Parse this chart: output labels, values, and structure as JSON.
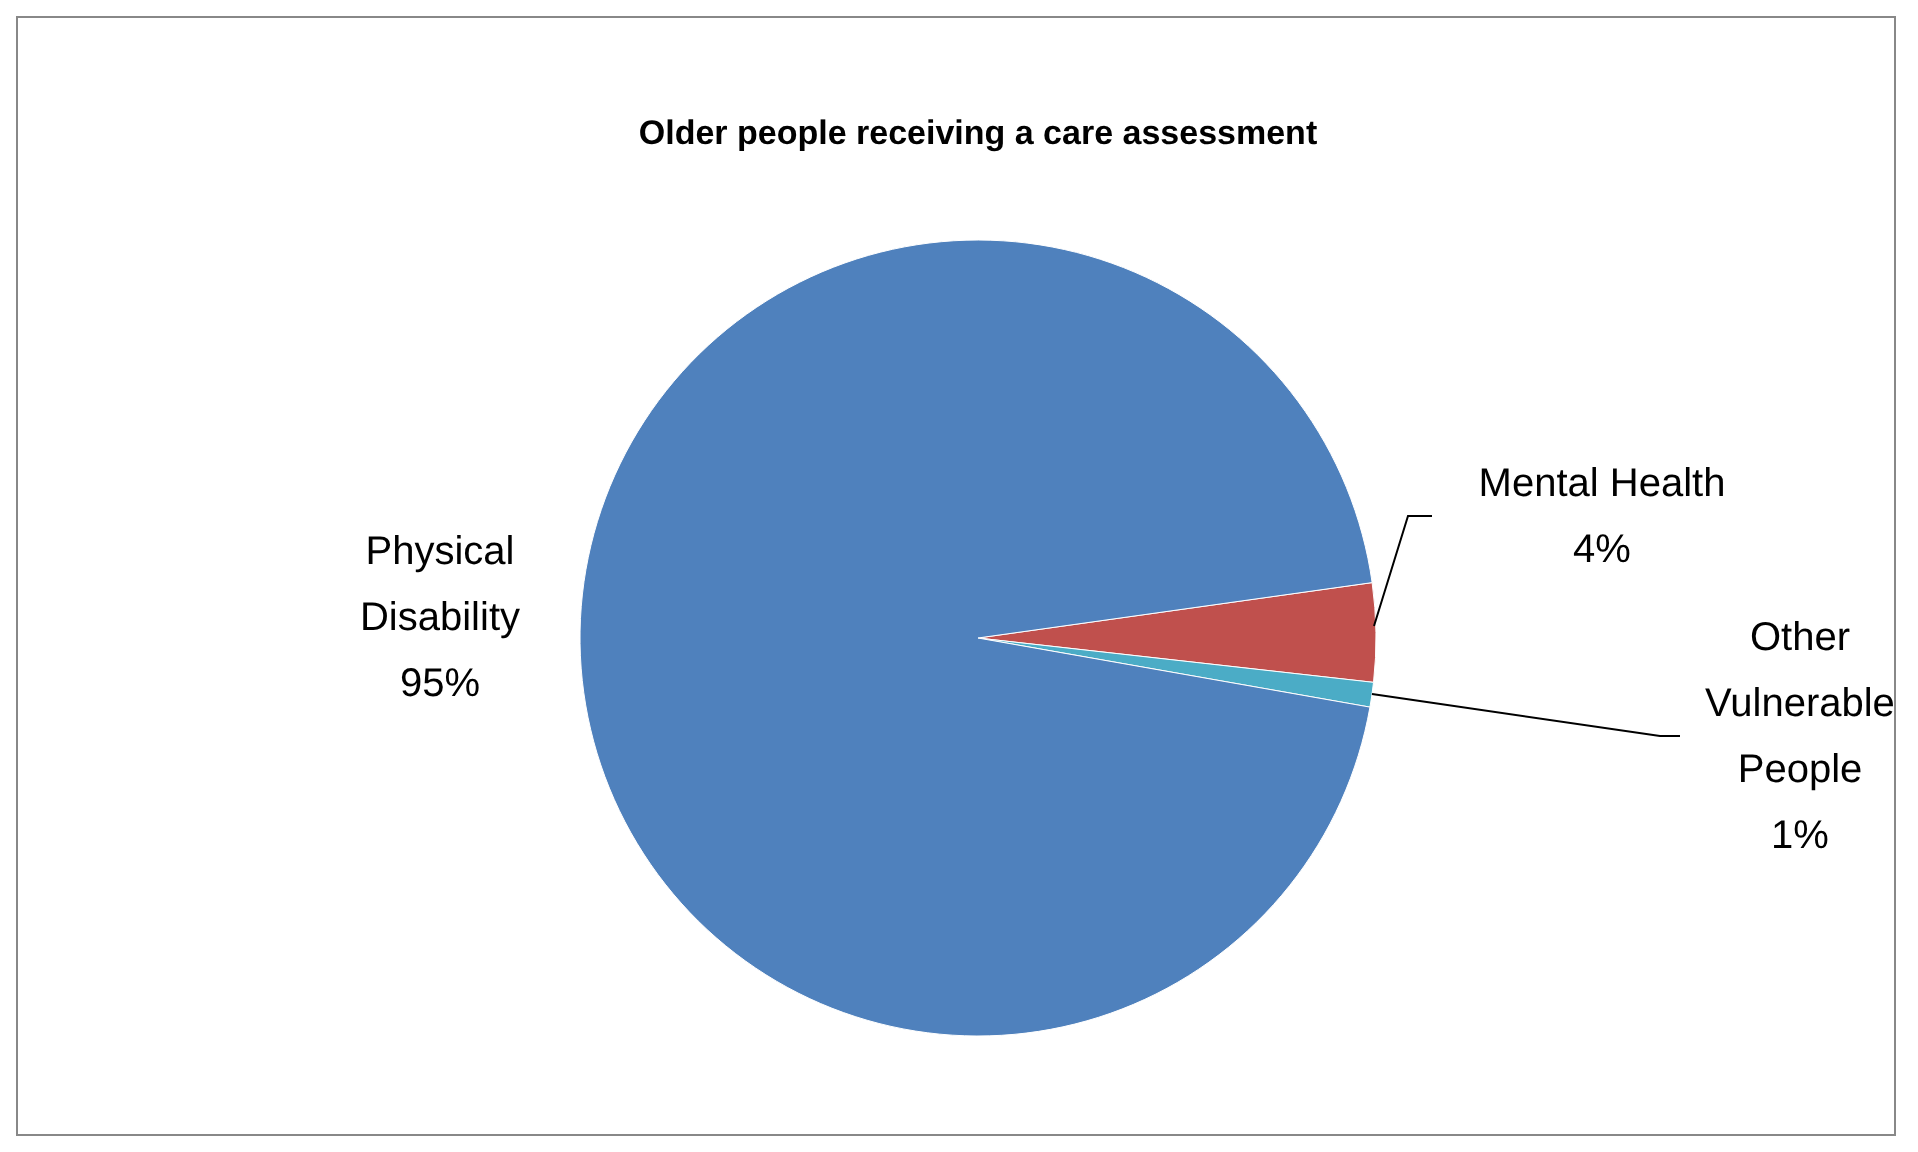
{
  "chart_data": {
    "type": "pie",
    "title": "Older people receiving a care assessment",
    "categories": [
      "Mental Health",
      "Other Vulnerable People",
      "Physical Disability"
    ],
    "values": [
      4,
      1,
      95
    ],
    "colors": [
      "#c0504d",
      "#4bacc6",
      "#4f81bd"
    ],
    "value_labels": [
      "4%",
      "1%",
      "95%"
    ]
  }
}
